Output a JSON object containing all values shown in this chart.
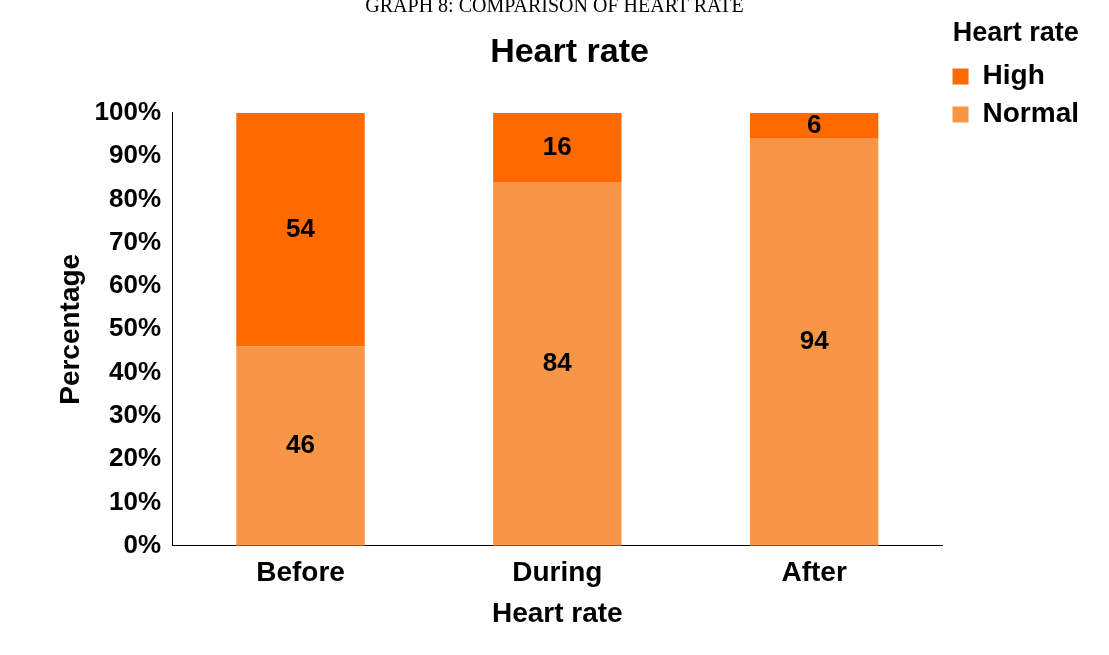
{
  "chart_data": {
    "type": "bar",
    "title": "Heart rate",
    "xlabel": "Heart rate",
    "ylabel": "Percentage",
    "legend_title": "Heart rate",
    "annotations": [
      "GRAPH 8: COMPARISON OF HEART RATE"
    ],
    "categories": [
      "Before",
      "During",
      "After"
    ],
    "series": [
      {
        "name": "Normal",
        "color": "#f79646",
        "values": [
          46,
          84,
          94
        ]
      },
      {
        "name": "High",
        "color": "#ff6a00",
        "values": [
          54,
          16,
          6
        ]
      }
    ],
    "stacked": true,
    "ylim": [
      0,
      100
    ],
    "yticks": [
      {
        "value": 0,
        "label": "0%"
      },
      {
        "value": 10,
        "label": "10%"
      },
      {
        "value": 20,
        "label": "20%"
      },
      {
        "value": 30,
        "label": "30%"
      },
      {
        "value": 40,
        "label": "40%"
      },
      {
        "value": 50,
        "label": "50%"
      },
      {
        "value": 60,
        "label": "60%"
      },
      {
        "value": 70,
        "label": "70%"
      },
      {
        "value": 80,
        "label": "80%"
      },
      {
        "value": 90,
        "label": "90%"
      },
      {
        "value": 100,
        "label": "100%"
      }
    ],
    "grid": false,
    "legend": "right",
    "data_labels": true
  }
}
